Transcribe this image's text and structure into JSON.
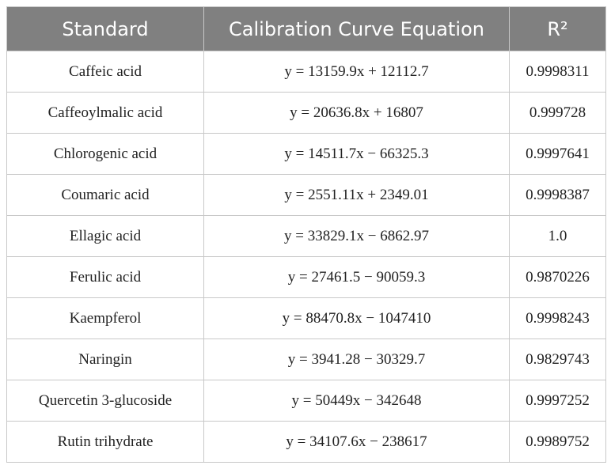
{
  "table": {
    "header": [
      "Standard",
      "Calibration Curve Equation",
      "R²"
    ],
    "rows": [
      [
        "Caffeic acid",
        "y = 13159.9x + 12112.7",
        "0.9998311"
      ],
      [
        "Caffeoylmalic acid",
        "y = 20636.8x + 16807",
        "0.999728"
      ],
      [
        "Chlorogenic acid",
        "y = 14511.7x − 66325.3",
        "0.9997641"
      ],
      [
        "Coumaric acid",
        "y = 2551.11x + 2349.01",
        "0.9998387"
      ],
      [
        "Ellagic acid",
        "y = 33829.1x − 6862.97",
        "1.0"
      ],
      [
        "Ferulic acid",
        "y = 27461.5 − 90059.3",
        "0.9870226"
      ],
      [
        "Kaempferol",
        "y = 88470.8x − 1047410",
        "0.9998243"
      ],
      [
        "Naringin",
        "y = 3941.28 − 30329.7",
        "0.9829743"
      ],
      [
        "Quercetin 3-glucoside",
        "y = 50449x − 342648",
        "0.9997252"
      ],
      [
        "Rutin trihydrate",
        "y = 34107.6x − 238617",
        "0.9989752"
      ]
    ]
  }
}
